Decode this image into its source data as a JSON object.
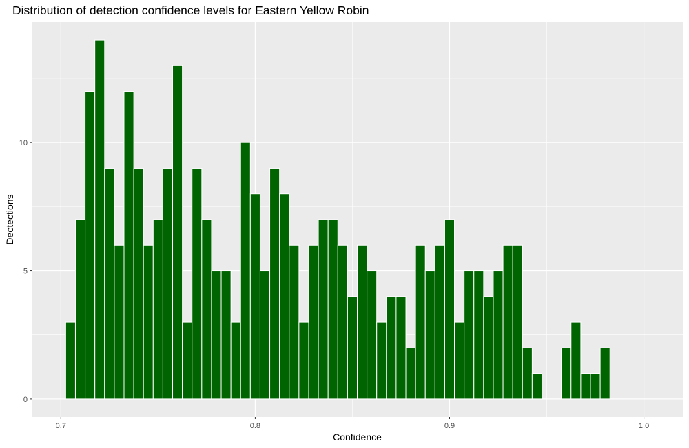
{
  "chart_data": {
    "type": "bar",
    "title": "Distribution of detection confidence levels for Eastern Yellow Robin",
    "xlabel": "Confidence",
    "ylabel": "Dectections",
    "xlim": [
      0.685,
      1.02
    ],
    "ylim": [
      -0.7,
      14.7
    ],
    "bin_width": 0.005,
    "x_ticks": [
      0.7,
      0.8,
      0.9,
      1.0
    ],
    "x_tick_labels": [
      "0.7",
      "0.8",
      "0.9",
      "1.0"
    ],
    "x_minor_ticks": [
      0.75,
      0.85,
      0.95
    ],
    "y_ticks": [
      0,
      5,
      10
    ],
    "y_tick_labels": [
      "0",
      "5",
      "10"
    ],
    "y_minor_ticks": [
      2.5,
      7.5,
      12.5
    ],
    "grid": true,
    "fill_color": "#006400",
    "edge_color": "#ffffff",
    "panel_background": "#ebebeb",
    "grid_color": "#ffffff",
    "bins": [
      0.705,
      0.71,
      0.715,
      0.72,
      0.725,
      0.73,
      0.735,
      0.74,
      0.745,
      0.75,
      0.755,
      0.76,
      0.765,
      0.77,
      0.775,
      0.78,
      0.785,
      0.79,
      0.795,
      0.8,
      0.805,
      0.81,
      0.815,
      0.82,
      0.825,
      0.83,
      0.835,
      0.84,
      0.845,
      0.85,
      0.855,
      0.86,
      0.865,
      0.87,
      0.875,
      0.88,
      0.885,
      0.89,
      0.895,
      0.9,
      0.905,
      0.91,
      0.915,
      0.92,
      0.925,
      0.93,
      0.935,
      0.94,
      0.945,
      0.95,
      0.955,
      0.96,
      0.965,
      0.97,
      0.975,
      0.98
    ],
    "values": [
      3,
      7,
      12,
      14,
      9,
      6,
      12,
      9,
      6,
      7,
      9,
      13,
      3,
      9,
      7,
      5,
      5,
      3,
      10,
      8,
      5,
      9,
      8,
      6,
      3,
      6,
      7,
      7,
      6,
      4,
      6,
      5,
      3,
      4,
      4,
      2,
      6,
      5,
      6,
      7,
      3,
      5,
      5,
      4,
      5,
      6,
      6,
      2,
      1,
      0,
      0,
      2,
      3,
      1,
      1,
      2
    ]
  }
}
